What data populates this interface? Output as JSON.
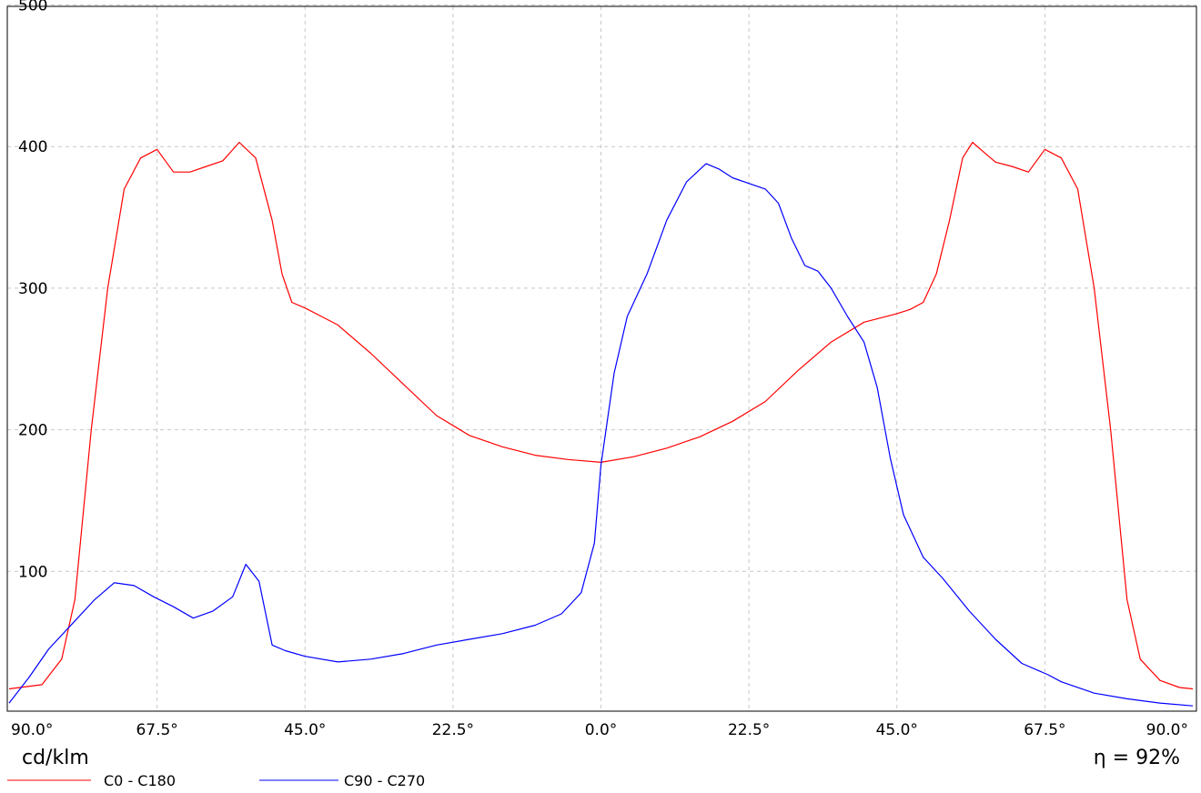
{
  "chart_data": {
    "type": "line",
    "y_unit": "cd/klm",
    "efficiency": "η = 92%",
    "ylim": [
      0,
      500
    ],
    "y_ticks": [
      "100",
      "200",
      "300",
      "400",
      "500"
    ],
    "xlim": [
      -90,
      90
    ],
    "x_ticks": [
      {
        "value": -90,
        "label": "90.0°"
      },
      {
        "value": -67.5,
        "label": "67.5°"
      },
      {
        "value": -45,
        "label": "45.0°"
      },
      {
        "value": -22.5,
        "label": "22.5°"
      },
      {
        "value": 0,
        "label": "0.0°"
      },
      {
        "value": 22.5,
        "label": "22.5°"
      },
      {
        "value": 45,
        "label": "45.0°"
      },
      {
        "value": 67.5,
        "label": "67.5°"
      },
      {
        "value": 90,
        "label": "90.0°"
      }
    ],
    "grid": true,
    "legend_position": "bottom-left",
    "series": [
      {
        "name": "C0 - C180",
        "color": "#ff0000",
        "points": [
          [
            -90,
            17
          ],
          [
            -85,
            20
          ],
          [
            -82,
            38
          ],
          [
            -80,
            80
          ],
          [
            -77.5,
            200
          ],
          [
            -75,
            300
          ],
          [
            -72.5,
            370
          ],
          [
            -70,
            392
          ],
          [
            -67.5,
            398
          ],
          [
            -65,
            382
          ],
          [
            -62.5,
            382
          ],
          [
            -60,
            386
          ],
          [
            -57.5,
            390
          ],
          [
            -55,
            403
          ],
          [
            -52.5,
            392
          ],
          [
            -50,
            348
          ],
          [
            -48.5,
            310
          ],
          [
            -47,
            290
          ],
          [
            -45,
            286
          ],
          [
            -42.5,
            280
          ],
          [
            -40,
            274
          ],
          [
            -35,
            254
          ],
          [
            -30,
            232
          ],
          [
            -25,
            210
          ],
          [
            -20,
            196
          ],
          [
            -15,
            188
          ],
          [
            -10,
            182
          ],
          [
            -5,
            179
          ],
          [
            0,
            177
          ],
          [
            5,
            181
          ],
          [
            10,
            187
          ],
          [
            15,
            195
          ],
          [
            20,
            206
          ],
          [
            25,
            220
          ],
          [
            30,
            242
          ],
          [
            35,
            262
          ],
          [
            40,
            276
          ],
          [
            45,
            282
          ],
          [
            47,
            285
          ],
          [
            49,
            290
          ],
          [
            51,
            310
          ],
          [
            53,
            348
          ],
          [
            55,
            392
          ],
          [
            56.5,
            403
          ],
          [
            58,
            397
          ],
          [
            60,
            389
          ],
          [
            62.5,
            386
          ],
          [
            65,
            382
          ],
          [
            67.5,
            398
          ],
          [
            70,
            392
          ],
          [
            72.5,
            370
          ],
          [
            75,
            300
          ],
          [
            77.5,
            200
          ],
          [
            80,
            80
          ],
          [
            82,
            38
          ],
          [
            85,
            23
          ],
          [
            88,
            18
          ],
          [
            90,
            17
          ]
        ]
      },
      {
        "name": "C90 - C270",
        "color": "#0000ff",
        "points": [
          [
            -90,
            7
          ],
          [
            -87,
            25
          ],
          [
            -84,
            45
          ],
          [
            -80,
            65
          ],
          [
            -77,
            80
          ],
          [
            -74,
            92
          ],
          [
            -71,
            90
          ],
          [
            -68,
            82
          ],
          [
            -65,
            75
          ],
          [
            -62,
            67
          ],
          [
            -59,
            72
          ],
          [
            -56,
            82
          ],
          [
            -54,
            105
          ],
          [
            -52,
            93
          ],
          [
            -50,
            48
          ],
          [
            -48,
            44
          ],
          [
            -45,
            40
          ],
          [
            -40,
            36
          ],
          [
            -35,
            38
          ],
          [
            -30,
            42
          ],
          [
            -25,
            48
          ],
          [
            -20,
            52
          ],
          [
            -15,
            56
          ],
          [
            -10,
            62
          ],
          [
            -6,
            70
          ],
          [
            -3,
            85
          ],
          [
            -1,
            120
          ],
          [
            0,
            175
          ],
          [
            2,
            240
          ],
          [
            4,
            280
          ],
          [
            7,
            310
          ],
          [
            10,
            348
          ],
          [
            13,
            375
          ],
          [
            16,
            388
          ],
          [
            18,
            384
          ],
          [
            20,
            378
          ],
          [
            22.5,
            374
          ],
          [
            25,
            370
          ],
          [
            27,
            360
          ],
          [
            29,
            335
          ],
          [
            31,
            316
          ],
          [
            33,
            312
          ],
          [
            35,
            300
          ],
          [
            37.5,
            280
          ],
          [
            40,
            262
          ],
          [
            42,
            230
          ],
          [
            44,
            180
          ],
          [
            46,
            140
          ],
          [
            49,
            110
          ],
          [
            52,
            95
          ],
          [
            56,
            72
          ],
          [
            60,
            52
          ],
          [
            64,
            35
          ],
          [
            68,
            27
          ],
          [
            70,
            22
          ],
          [
            75,
            14
          ],
          [
            80,
            10
          ],
          [
            85,
            7
          ],
          [
            90,
            5
          ]
        ]
      }
    ]
  }
}
